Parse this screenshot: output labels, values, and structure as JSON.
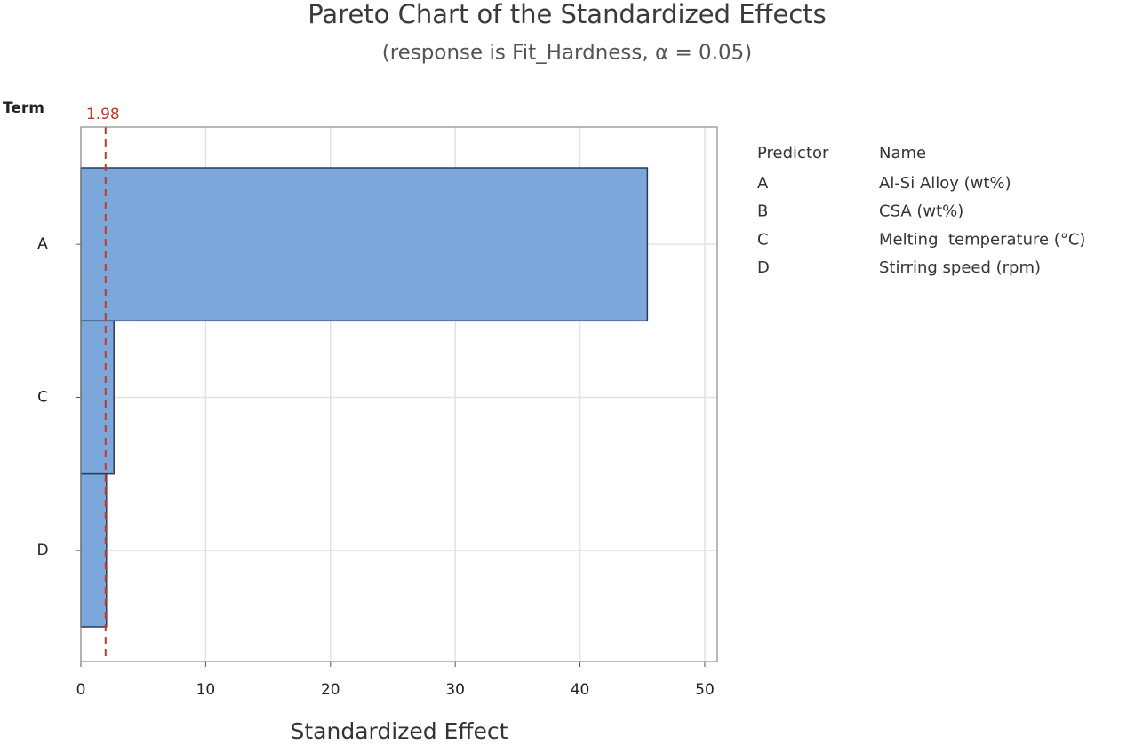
{
  "chart_data": {
    "type": "bar",
    "orientation": "horizontal",
    "title": "Pareto Chart of the Standardized Effects",
    "subtitle": "(response is Fit_Hardness, α = 0.05)",
    "y_label": "Term",
    "x_label": "Standardized Effect",
    "categories": [
      "A",
      "C",
      "D"
    ],
    "values": [
      45.4,
      2.65,
      2.05
    ],
    "color": "#7ba7db",
    "xlim": [
      0,
      51
    ],
    "xticks": [
      0,
      10,
      20,
      30,
      40,
      50
    ],
    "grid": true,
    "reference_line": {
      "value": 1.98,
      "color": "#c0392b"
    },
    "legend_table": {
      "headers": [
        "Predictor",
        "Name"
      ],
      "rows": [
        [
          "A",
          "Al-Si Alloy (wt%)"
        ],
        [
          "B",
          "CSA (wt%)"
        ],
        [
          "C",
          "Melting  temperature (°C)"
        ],
        [
          "D",
          "Stirring speed (rpm)"
        ]
      ]
    }
  }
}
